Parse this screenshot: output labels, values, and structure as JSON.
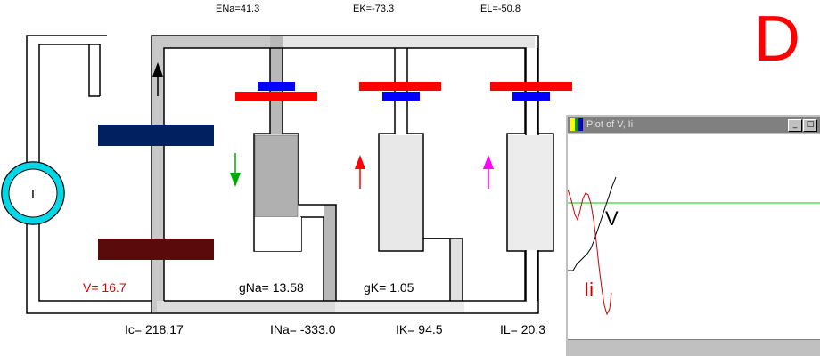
{
  "panel_letter": "D",
  "reversal": {
    "ena": "ENa=41.3",
    "ek": "EK=-73.3",
    "el": "EL=-50.8"
  },
  "source_symbol": "I",
  "labels": {
    "v": "V= 16.7",
    "gna": "gNa= 13.58",
    "gk": "gK= 1.05",
    "ic": "Ic= 218.17",
    "ina": "INa= -333.0",
    "ik": "IK= 94.5",
    "il": "IL= 20.3"
  },
  "plot": {
    "title": "Plot of V, Ii",
    "trace_v_label": "V",
    "trace_i_label": "Ii",
    "btn_minimize": "_",
    "btn_maximize": "□",
    "colors": {
      "v": "#000000",
      "i": "#cc0000",
      "baseline": "#00cc00"
    }
  },
  "colors": {
    "wire": "#000000",
    "membrane_top": "#002060",
    "membrane_bottom": "#5a0a0a",
    "battery_long": "#ff0000",
    "battery_short": "#0000ff",
    "source_ring": "#00d8e8",
    "arrow_c": "#000000",
    "arrow_na": "#00aa00",
    "arrow_k": "#ff0000",
    "arrow_l": "#ff00ff"
  }
}
